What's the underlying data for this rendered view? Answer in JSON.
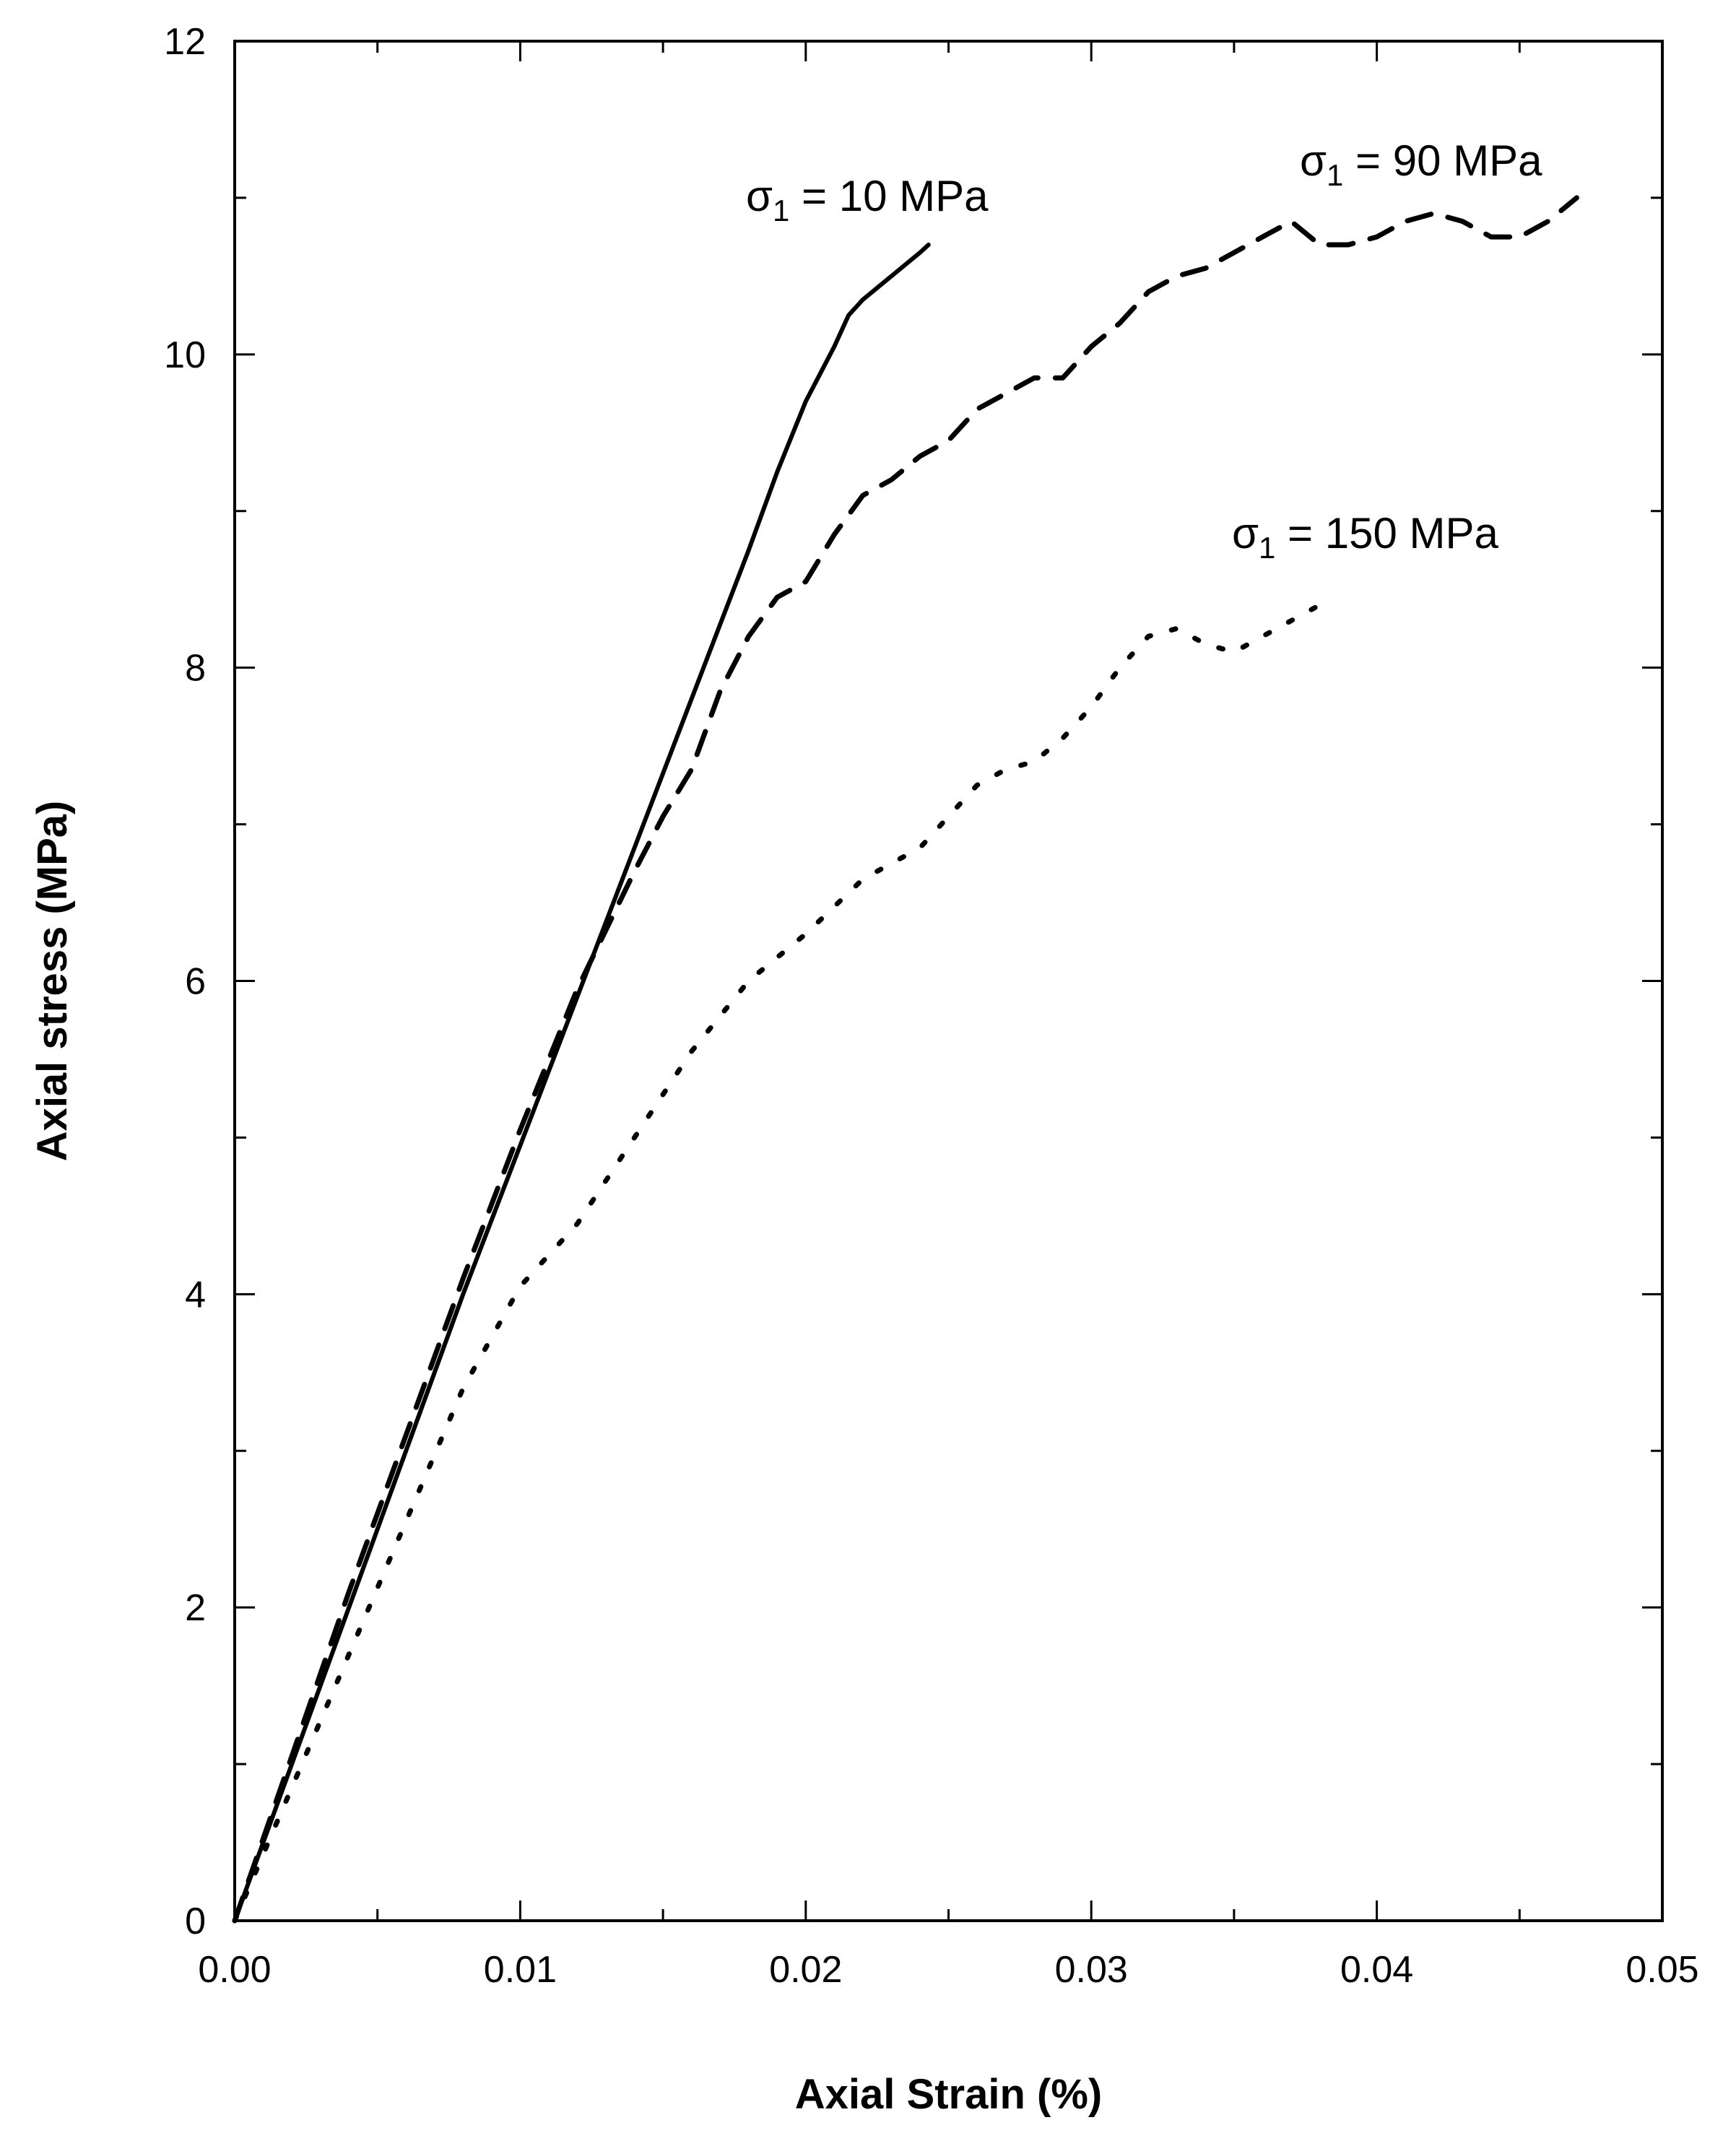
{
  "chart_data": {
    "type": "line",
    "title": "",
    "xlabel": "Axial Strain (%)",
    "ylabel": "Axial stress (MPa)",
    "xlim": [
      0.0,
      0.05
    ],
    "ylim": [
      0,
      12
    ],
    "xticks": [
      0.0,
      0.01,
      0.02,
      0.03,
      0.04,
      0.05
    ],
    "xtick_labels": [
      "0.00",
      "0.01",
      "0.02",
      "0.03",
      "0.04",
      "0.05"
    ],
    "yticks": [
      0,
      2,
      4,
      6,
      8,
      10,
      12
    ],
    "ytick_labels": [
      "0",
      "2",
      "4",
      "6",
      "8",
      "10",
      "12"
    ],
    "grid": false,
    "legend": "none",
    "series": [
      {
        "name": "σ1 = 10 MPa",
        "line_style": "solid",
        "x": [
          0.0,
          0.002,
          0.004,
          0.006,
          0.008,
          0.01,
          0.012,
          0.014,
          0.016,
          0.018,
          0.019,
          0.02,
          0.021,
          0.0215,
          0.022,
          0.023,
          0.024,
          0.0243
        ],
        "y": [
          0.0,
          1.0,
          2.0,
          3.0,
          4.0,
          4.95,
          5.9,
          6.85,
          7.8,
          8.75,
          9.25,
          9.7,
          10.05,
          10.25,
          10.35,
          10.5,
          10.65,
          10.7
        ]
      },
      {
        "name": "σ1 = 90 MPa",
        "line_style": "dashed",
        "x": [
          0.0,
          0.002,
          0.004,
          0.006,
          0.008,
          0.01,
          0.012,
          0.014,
          0.015,
          0.016,
          0.017,
          0.018,
          0.019,
          0.02,
          0.021,
          0.022,
          0.023,
          0.024,
          0.025,
          0.026,
          0.027,
          0.028,
          0.029,
          0.03,
          0.031,
          0.032,
          0.033,
          0.034,
          0.035,
          0.036,
          0.037,
          0.038,
          0.039,
          0.04,
          0.041,
          0.042,
          0.043,
          0.044,
          0.045,
          0.046,
          0.047
        ],
        "y": [
          0.0,
          1.05,
          2.1,
          3.1,
          4.1,
          5.05,
          5.95,
          6.7,
          7.05,
          7.35,
          7.85,
          8.2,
          8.45,
          8.55,
          8.85,
          9.1,
          9.2,
          9.35,
          9.45,
          9.65,
          9.75,
          9.85,
          9.85,
          10.05,
          10.2,
          10.4,
          10.5,
          10.55,
          10.65,
          10.75,
          10.85,
          10.7,
          10.7,
          10.75,
          10.85,
          10.9,
          10.85,
          10.75,
          10.75,
          10.85,
          11.0
        ]
      },
      {
        "name": "σ1 = 150 MPa",
        "line_style": "dotted",
        "x": [
          0.0,
          0.002,
          0.004,
          0.006,
          0.008,
          0.01,
          0.011,
          0.012,
          0.014,
          0.016,
          0.018,
          0.02,
          0.022,
          0.024,
          0.026,
          0.027,
          0.028,
          0.029,
          0.03,
          0.031,
          0.032,
          0.033,
          0.034,
          0.035,
          0.036,
          0.037,
          0.038,
          0.0385
        ],
        "y": [
          0.0,
          0.85,
          1.7,
          2.55,
          3.4,
          4.05,
          4.25,
          4.45,
          5.0,
          5.55,
          6.0,
          6.3,
          6.65,
          6.85,
          7.25,
          7.35,
          7.4,
          7.55,
          7.75,
          8.0,
          8.2,
          8.25,
          8.15,
          8.1,
          8.2,
          8.3,
          8.4,
          8.45
        ]
      }
    ],
    "annotations": [
      {
        "label_main": "σ",
        "label_sub": "1",
        "label_rest": " = 10 MPa",
        "series": "σ1 = 10 MPa"
      },
      {
        "label_main": "σ",
        "label_sub": "1",
        "label_rest": " =  90 MPa",
        "series": "σ1 = 90 MPa"
      },
      {
        "label_main": "σ",
        "label_sub": "1",
        "label_rest": " = 150 MPa",
        "series": "σ1 = 150 MPa"
      }
    ]
  }
}
